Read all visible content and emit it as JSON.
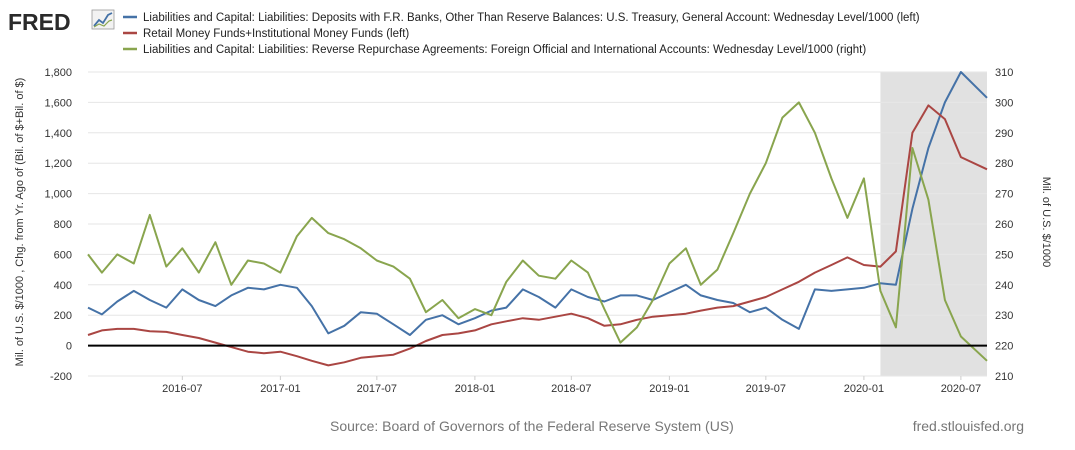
{
  "logo": {
    "text": "FRED"
  },
  "footer": {
    "source": "Source: Board of Governors of the Federal Reserve System (US)",
    "site": "fred.stlouisfed.org"
  },
  "colors": {
    "series1": "#4572a7",
    "series2": "#aa4643",
    "series3": "#89a54e",
    "recession": "#e1e1e1",
    "zero_line": "#000000",
    "grid": "#e6e6e6"
  },
  "chart_data": {
    "type": "line",
    "legend": [
      "Liabilities and Capital: Liabilities: Deposits with F.R. Banks, Other Than Reserve Balances: U.S. Treasury, General Account: Wednesday Level/1000 (left)",
      "Retail Money Funds+Institutional Money Funds (left)",
      "Liabilities and Capital: Liabilities: Reverse Repurchase Agreements: Foreign Official and International Accounts: Wednesday Level/1000 (right)"
    ],
    "ylabel_left": "Mil. of U.S. $/1000 , Chg. from Yr. Ago of (Bil. of $+Bil. of $)",
    "ylabel_right": "Mil. of U.S. $/1000",
    "y_left": {
      "min": -200,
      "max": 1800,
      "ticks": [
        "-200",
        "0",
        "200",
        "400",
        "600",
        "800",
        "1,000",
        "1,200",
        "1,400",
        "1,600",
        "1,800"
      ]
    },
    "y_right": {
      "min": 210,
      "max": 310,
      "ticks": [
        "210",
        "220",
        "230",
        "240",
        "250",
        "260",
        "270",
        "280",
        "290",
        "300",
        "310"
      ]
    },
    "x_range": [
      "2016-01-06",
      "2020-08-19"
    ],
    "x_ticks": [
      "2016-07",
      "2017-01",
      "2017-07",
      "2018-01",
      "2018-07",
      "2019-01",
      "2019-07",
      "2020-01",
      "2020-07"
    ],
    "recession": [
      "2020-02-01",
      "2020-08-19"
    ],
    "series": [
      {
        "axis": "left",
        "points": [
          [
            "2016-01-06",
            250
          ],
          [
            "2016-02-01",
            205
          ],
          [
            "2016-03-01",
            290
          ],
          [
            "2016-04-01",
            360
          ],
          [
            "2016-05-01",
            300
          ],
          [
            "2016-06-01",
            250
          ],
          [
            "2016-07-01",
            370
          ],
          [
            "2016-08-01",
            300
          ],
          [
            "2016-09-01",
            260
          ],
          [
            "2016-10-01",
            330
          ],
          [
            "2016-11-01",
            380
          ],
          [
            "2016-12-01",
            370
          ],
          [
            "2017-01-01",
            400
          ],
          [
            "2017-02-01",
            380
          ],
          [
            "2017-03-01",
            260
          ],
          [
            "2017-04-01",
            80
          ],
          [
            "2017-05-01",
            130
          ],
          [
            "2017-06-01",
            220
          ],
          [
            "2017-07-01",
            210
          ],
          [
            "2017-08-01",
            140
          ],
          [
            "2017-09-01",
            70
          ],
          [
            "2017-10-01",
            170
          ],
          [
            "2017-11-01",
            200
          ],
          [
            "2017-12-01",
            140
          ],
          [
            "2018-01-01",
            180
          ],
          [
            "2018-02-01",
            230
          ],
          [
            "2018-03-01",
            250
          ],
          [
            "2018-04-01",
            370
          ],
          [
            "2018-05-01",
            320
          ],
          [
            "2018-06-01",
            250
          ],
          [
            "2018-07-01",
            370
          ],
          [
            "2018-08-01",
            320
          ],
          [
            "2018-09-01",
            290
          ],
          [
            "2018-10-01",
            330
          ],
          [
            "2018-11-01",
            330
          ],
          [
            "2018-12-01",
            300
          ],
          [
            "2019-01-01",
            350
          ],
          [
            "2019-02-01",
            400
          ],
          [
            "2019-03-01",
            330
          ],
          [
            "2019-04-01",
            300
          ],
          [
            "2019-05-01",
            280
          ],
          [
            "2019-06-01",
            220
          ],
          [
            "2019-07-01",
            250
          ],
          [
            "2019-08-01",
            170
          ],
          [
            "2019-09-01",
            110
          ],
          [
            "2019-10-01",
            370
          ],
          [
            "2019-11-01",
            360
          ],
          [
            "2019-12-01",
            370
          ],
          [
            "2020-01-01",
            380
          ],
          [
            "2020-02-01",
            410
          ],
          [
            "2020-03-01",
            400
          ],
          [
            "2020-04-01",
            900
          ],
          [
            "2020-05-01",
            1300
          ],
          [
            "2020-06-01",
            1600
          ],
          [
            "2020-07-01",
            1800
          ],
          [
            "2020-08-19",
            1630
          ]
        ]
      },
      {
        "axis": "left",
        "points": [
          [
            "2016-01-06",
            70
          ],
          [
            "2016-02-01",
            100
          ],
          [
            "2016-03-01",
            110
          ],
          [
            "2016-04-01",
            110
          ],
          [
            "2016-05-01",
            95
          ],
          [
            "2016-06-01",
            90
          ],
          [
            "2016-07-01",
            70
          ],
          [
            "2016-08-01",
            50
          ],
          [
            "2016-09-01",
            20
          ],
          [
            "2016-10-01",
            -10
          ],
          [
            "2016-11-01",
            -40
          ],
          [
            "2016-12-01",
            -50
          ],
          [
            "2017-01-01",
            -40
          ],
          [
            "2017-02-01",
            -70
          ],
          [
            "2017-03-01",
            -100
          ],
          [
            "2017-04-01",
            -130
          ],
          [
            "2017-05-01",
            -110
          ],
          [
            "2017-06-01",
            -80
          ],
          [
            "2017-07-01",
            -70
          ],
          [
            "2017-08-01",
            -60
          ],
          [
            "2017-09-01",
            -20
          ],
          [
            "2017-10-01",
            30
          ],
          [
            "2017-11-01",
            70
          ],
          [
            "2017-12-01",
            80
          ],
          [
            "2018-01-01",
            100
          ],
          [
            "2018-02-01",
            140
          ],
          [
            "2018-03-01",
            160
          ],
          [
            "2018-04-01",
            180
          ],
          [
            "2018-05-01",
            170
          ],
          [
            "2018-06-01",
            190
          ],
          [
            "2018-07-01",
            210
          ],
          [
            "2018-08-01",
            180
          ],
          [
            "2018-09-01",
            130
          ],
          [
            "2018-10-01",
            140
          ],
          [
            "2018-11-01",
            170
          ],
          [
            "2018-12-01",
            190
          ],
          [
            "2019-01-01",
            200
          ],
          [
            "2019-02-01",
            210
          ],
          [
            "2019-03-01",
            230
          ],
          [
            "2019-04-01",
            250
          ],
          [
            "2019-05-01",
            260
          ],
          [
            "2019-06-01",
            290
          ],
          [
            "2019-07-01",
            320
          ],
          [
            "2019-08-01",
            370
          ],
          [
            "2019-09-01",
            420
          ],
          [
            "2019-10-01",
            480
          ],
          [
            "2019-11-01",
            530
          ],
          [
            "2019-12-01",
            580
          ],
          [
            "2020-01-01",
            530
          ],
          [
            "2020-02-01",
            520
          ],
          [
            "2020-03-01",
            620
          ],
          [
            "2020-04-01",
            1400
          ],
          [
            "2020-05-01",
            1580
          ],
          [
            "2020-06-01",
            1490
          ],
          [
            "2020-07-01",
            1240
          ],
          [
            "2020-08-19",
            1160
          ]
        ]
      },
      {
        "axis": "right",
        "points": [
          [
            "2016-01-06",
            250
          ],
          [
            "2016-02-01",
            244
          ],
          [
            "2016-03-01",
            250
          ],
          [
            "2016-04-01",
            247
          ],
          [
            "2016-05-01",
            263
          ],
          [
            "2016-06-01",
            246
          ],
          [
            "2016-07-01",
            252
          ],
          [
            "2016-08-01",
            244
          ],
          [
            "2016-09-01",
            254
          ],
          [
            "2016-10-01",
            240
          ],
          [
            "2016-11-01",
            248
          ],
          [
            "2016-12-01",
            247
          ],
          [
            "2017-01-01",
            244
          ],
          [
            "2017-02-01",
            256
          ],
          [
            "2017-03-01",
            262
          ],
          [
            "2017-04-01",
            257
          ],
          [
            "2017-05-01",
            255
          ],
          [
            "2017-06-01",
            252
          ],
          [
            "2017-07-01",
            248
          ],
          [
            "2017-08-01",
            246
          ],
          [
            "2017-09-01",
            242
          ],
          [
            "2017-10-01",
            231
          ],
          [
            "2017-11-01",
            235
          ],
          [
            "2017-12-01",
            229
          ],
          [
            "2018-01-01",
            232
          ],
          [
            "2018-02-01",
            230
          ],
          [
            "2018-03-01",
            241
          ],
          [
            "2018-04-01",
            248
          ],
          [
            "2018-05-01",
            243
          ],
          [
            "2018-06-01",
            242
          ],
          [
            "2018-07-01",
            248
          ],
          [
            "2018-08-01",
            244
          ],
          [
            "2018-09-01",
            232
          ],
          [
            "2018-10-01",
            221
          ],
          [
            "2018-11-01",
            226
          ],
          [
            "2018-12-01",
            235
          ],
          [
            "2019-01-01",
            247
          ],
          [
            "2019-02-01",
            252
          ],
          [
            "2019-03-01",
            240
          ],
          [
            "2019-04-01",
            245
          ],
          [
            "2019-05-01",
            257
          ],
          [
            "2019-06-01",
            270
          ],
          [
            "2019-07-01",
            280
          ],
          [
            "2019-08-01",
            295
          ],
          [
            "2019-09-01",
            300
          ],
          [
            "2019-10-01",
            290
          ],
          [
            "2019-11-01",
            275
          ],
          [
            "2019-12-01",
            262
          ],
          [
            "2020-01-01",
            275
          ],
          [
            "2020-02-01",
            238
          ],
          [
            "2020-03-01",
            226
          ],
          [
            "2020-04-01",
            285
          ],
          [
            "2020-05-01",
            268
          ],
          [
            "2020-06-01",
            235
          ],
          [
            "2020-07-01",
            223
          ],
          [
            "2020-08-19",
            215
          ]
        ]
      }
    ]
  }
}
